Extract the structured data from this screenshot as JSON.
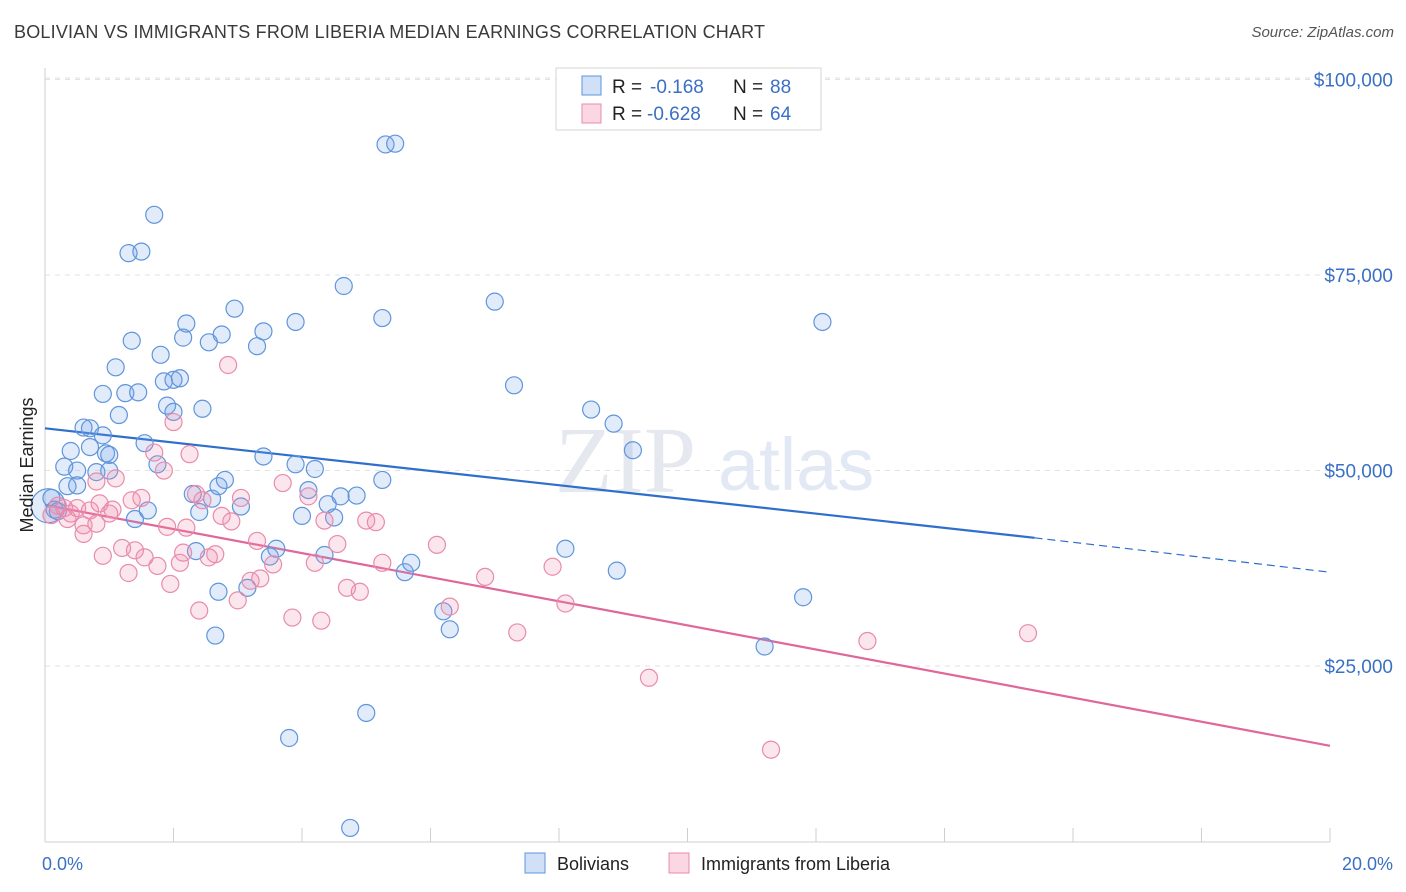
{
  "title": "BOLIVIAN VS IMMIGRANTS FROM LIBERIA MEDIAN EARNINGS CORRELATION CHART",
  "source": "Source: ZipAtlas.com",
  "watermark": {
    "zip": "ZIP",
    "atlas": "atlas"
  },
  "colors": {
    "blue_fill": "rgba(120,165,230,0.22)",
    "blue_stroke": "#5f95dc",
    "blue_line": "#2f6fcc",
    "pink_fill": "rgba(240,140,175,0.22)",
    "pink_stroke": "#e98bab",
    "pink_line": "#e0679a",
    "axis_text": "#3a70c4",
    "grid": "#e2e2e2"
  },
  "legend": {
    "rows": [
      {
        "r_label": "R = ",
        "r_value": "-0.168",
        "n_label": "N = ",
        "n_value": "88"
      },
      {
        "r_label": "R = ",
        "r_value": "-0.628",
        "n_label": "N = ",
        "n_value": "64"
      }
    ]
  },
  "chart_data": {
    "type": "scatter",
    "title": "BOLIVIAN VS IMMIGRANTS FROM LIBERIA MEDIAN EARNINGS CORRELATION CHART",
    "xlabel": "",
    "ylabel": "Median Earnings",
    "xlim": [
      0,
      20
    ],
    "ylim": [
      2500,
      102500
    ],
    "x_tick_labels": [
      "0.0%",
      "20.0%"
    ],
    "y_ticks": [
      {
        "value": 25000,
        "label": "$25,000"
      },
      {
        "value": 50000,
        "label": "$50,000"
      },
      {
        "value": 75000,
        "label": "$75,000"
      },
      {
        "value": 100000,
        "label": "$100,000"
      }
    ],
    "legend_position": "top-center",
    "series": [
      {
        "name": "Bolivians",
        "trend": {
          "x0": 0,
          "y0": 55400,
          "x1": 15.4,
          "y1": 41400,
          "dash_x1": 20,
          "dash_y1": 37000
        },
        "points": [
          [
            0.1,
            46500
          ],
          [
            0.15,
            45000
          ],
          [
            0.2,
            44800
          ],
          [
            0.3,
            50500
          ],
          [
            0.35,
            48000
          ],
          [
            0.4,
            52500
          ],
          [
            0.5,
            50000
          ],
          [
            0.5,
            48100
          ],
          [
            0.6,
            55500
          ],
          [
            0.7,
            55400
          ],
          [
            0.7,
            53000
          ],
          [
            0.8,
            49800
          ],
          [
            0.9,
            59800
          ],
          [
            0.9,
            54500
          ],
          [
            0.95,
            52200
          ],
          [
            1.0,
            50000
          ],
          [
            1.0,
            52000
          ],
          [
            1.1,
            63200
          ],
          [
            1.15,
            57100
          ],
          [
            1.25,
            59900
          ],
          [
            1.3,
            77800
          ],
          [
            1.35,
            66600
          ],
          [
            1.4,
            43800
          ],
          [
            1.45,
            60000
          ],
          [
            1.5,
            78000
          ],
          [
            1.55,
            53500
          ],
          [
            1.6,
            44900
          ],
          [
            1.7,
            82700
          ],
          [
            1.75,
            50800
          ],
          [
            1.8,
            64800
          ],
          [
            1.85,
            61400
          ],
          [
            1.9,
            58300
          ],
          [
            2.0,
            57500
          ],
          [
            2.0,
            61600
          ],
          [
            2.1,
            61800
          ],
          [
            2.15,
            67000
          ],
          [
            2.2,
            68800
          ],
          [
            2.3,
            47000
          ],
          [
            2.35,
            39700
          ],
          [
            2.4,
            44700
          ],
          [
            2.45,
            57900
          ],
          [
            2.55,
            66400
          ],
          [
            2.6,
            46400
          ],
          [
            2.65,
            28900
          ],
          [
            2.7,
            34500
          ],
          [
            2.7,
            48000
          ],
          [
            2.75,
            67400
          ],
          [
            2.8,
            48800
          ],
          [
            2.95,
            70700
          ],
          [
            3.05,
            45400
          ],
          [
            3.15,
            35000
          ],
          [
            3.3,
            65900
          ],
          [
            3.4,
            51800
          ],
          [
            3.4,
            67800
          ],
          [
            3.5,
            39000
          ],
          [
            3.6,
            40000
          ],
          [
            3.8,
            15800
          ],
          [
            3.9,
            50800
          ],
          [
            3.9,
            69000
          ],
          [
            4.0,
            44200
          ],
          [
            4.1,
            47500
          ],
          [
            4.2,
            50200
          ],
          [
            4.35,
            39200
          ],
          [
            4.4,
            45700
          ],
          [
            4.5,
            44000
          ],
          [
            4.6,
            46700
          ],
          [
            4.65,
            73600
          ],
          [
            4.75,
            4300
          ],
          [
            4.85,
            46800
          ],
          [
            5.0,
            19000
          ],
          [
            5.25,
            48800
          ],
          [
            5.25,
            69500
          ],
          [
            5.3,
            91700
          ],
          [
            5.45,
            91800
          ],
          [
            5.6,
            37000
          ],
          [
            5.7,
            38200
          ],
          [
            6.2,
            32000
          ],
          [
            6.3,
            29700
          ],
          [
            7.0,
            71600
          ],
          [
            7.3,
            60900
          ],
          [
            8.1,
            40000
          ],
          [
            8.5,
            57800
          ],
          [
            8.85,
            56000
          ],
          [
            8.9,
            37200
          ],
          [
            9.15,
            52600
          ],
          [
            11.2,
            27500
          ],
          [
            11.8,
            33800
          ],
          [
            12.1,
            69000
          ]
        ]
      },
      {
        "name": "Immigrants from Liberia",
        "trend": {
          "x0": 0,
          "y0": 45600,
          "x1": 20,
          "y1": 14800
        },
        "points": [
          [
            0.1,
            44300
          ],
          [
            0.2,
            45500
          ],
          [
            0.3,
            45200
          ],
          [
            0.35,
            43800
          ],
          [
            0.4,
            44500
          ],
          [
            0.5,
            45200
          ],
          [
            0.6,
            43000
          ],
          [
            0.6,
            41900
          ],
          [
            0.7,
            44900
          ],
          [
            0.8,
            43200
          ],
          [
            0.8,
            48600
          ],
          [
            0.85,
            45800
          ],
          [
            0.9,
            39100
          ],
          [
            1.0,
            44500
          ],
          [
            1.05,
            45000
          ],
          [
            1.1,
            49000
          ],
          [
            1.2,
            40100
          ],
          [
            1.3,
            36900
          ],
          [
            1.35,
            46200
          ],
          [
            1.4,
            39800
          ],
          [
            1.5,
            46500
          ],
          [
            1.55,
            38900
          ],
          [
            1.7,
            52300
          ],
          [
            1.75,
            37800
          ],
          [
            1.85,
            50000
          ],
          [
            1.9,
            42800
          ],
          [
            1.95,
            35500
          ],
          [
            2.0,
            56200
          ],
          [
            2.1,
            38200
          ],
          [
            2.15,
            39500
          ],
          [
            2.2,
            42700
          ],
          [
            2.25,
            52100
          ],
          [
            2.35,
            47000
          ],
          [
            2.4,
            32100
          ],
          [
            2.45,
            46200
          ],
          [
            2.55,
            38900
          ],
          [
            2.65,
            39300
          ],
          [
            2.75,
            44200
          ],
          [
            2.85,
            63500
          ],
          [
            2.9,
            43500
          ],
          [
            3.0,
            33400
          ],
          [
            3.05,
            46500
          ],
          [
            3.2,
            35900
          ],
          [
            3.3,
            41000
          ],
          [
            3.35,
            36200
          ],
          [
            3.55,
            38000
          ],
          [
            3.7,
            48400
          ],
          [
            3.85,
            31200
          ],
          [
            4.1,
            46700
          ],
          [
            4.2,
            38200
          ],
          [
            4.3,
            30800
          ],
          [
            4.35,
            43600
          ],
          [
            4.55,
            40600
          ],
          [
            4.7,
            35000
          ],
          [
            4.9,
            34500
          ],
          [
            5.0,
            43600
          ],
          [
            5.25,
            38200
          ],
          [
            6.3,
            32600
          ],
          [
            6.85,
            36400
          ],
          [
            7.35,
            29300
          ],
          [
            7.9,
            37700
          ],
          [
            8.1,
            33000
          ],
          [
            9.4,
            23500
          ],
          [
            12.8,
            28200
          ]
        ]
      }
    ]
  },
  "extra_pink_points": [
    [
      5.15,
      43400
    ],
    [
      6.1,
      40500
    ],
    [
      11.3,
      14300
    ],
    [
      15.3,
      29200
    ]
  ],
  "bottom_legend": {
    "items": [
      {
        "label": "Bolivians"
      },
      {
        "label": "Immigrants from Liberia"
      }
    ]
  }
}
